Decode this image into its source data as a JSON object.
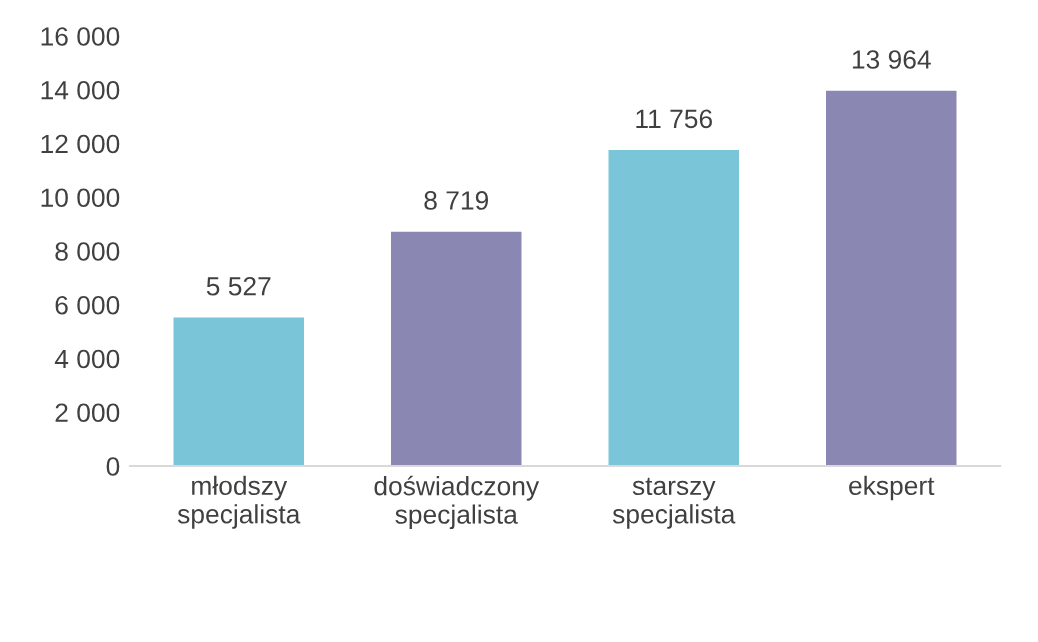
{
  "chart_data": {
    "type": "bar",
    "categories": [
      "młodszy\nspecjalista",
      "doświadczony\nspecjalista",
      "starszy\nspecjalista",
      "ekspert"
    ],
    "values": [
      5527,
      8719,
      11756,
      13964
    ],
    "colors": [
      "#7ac5d8",
      "#8a87b3",
      "#7ac5d8",
      "#8a87b3"
    ],
    "value_labels": [
      "5 527",
      "8 719",
      "11 756",
      "13 964"
    ],
    "ylim": [
      0,
      16000
    ],
    "yticks": [
      {
        "value": 0,
        "label": "0"
      },
      {
        "value": 2000,
        "label": "2 000"
      },
      {
        "value": 4000,
        "label": "4 000"
      },
      {
        "value": 6000,
        "label": "6 000"
      },
      {
        "value": 8000,
        "label": "8 000"
      },
      {
        "value": 10000,
        "label": "10 000"
      },
      {
        "value": 12000,
        "label": "12 000"
      },
      {
        "value": 14000,
        "label": "14 000"
      },
      {
        "value": 16000,
        "label": "16 000"
      }
    ],
    "grid": false,
    "legend": false
  }
}
